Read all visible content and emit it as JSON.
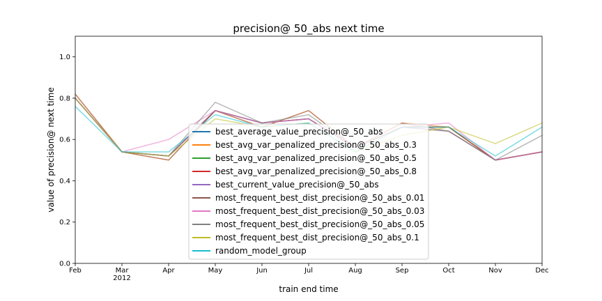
{
  "chart_data": {
    "type": "line",
    "title": "precision@ 50_abs next time",
    "xlabel": "train end time",
    "ylabel": "value of precision@ next time",
    "categories": [
      "Feb",
      "Mar",
      "Apr",
      "May",
      "Jun",
      "Jul",
      "Aug",
      "Sep",
      "Oct",
      "Nov",
      "Dec"
    ],
    "year_label": "2012",
    "ylim": [
      0.0,
      1.1
    ],
    "yticks": [
      "0.0",
      "0.2",
      "0.4",
      "0.6",
      "0.8",
      "1.0"
    ],
    "grid": false,
    "legend_position": "center",
    "series": [
      {
        "name": "best_average_value_precision@_50_abs",
        "color": "#1f77b4",
        "values": [
          0.8,
          0.54,
          0.52,
          0.74,
          0.68,
          0.7,
          0.56,
          0.66,
          0.66,
          0.5,
          0.54
        ]
      },
      {
        "name": "best_avg_var_penalized_precision@_50_abs_0.3",
        "color": "#ff7f0e",
        "values": [
          0.82,
          0.54,
          0.5,
          0.74,
          0.66,
          0.74,
          0.56,
          0.68,
          0.66,
          0.5,
          0.54
        ]
      },
      {
        "name": "best_avg_var_penalized_precision@_50_abs_0.5",
        "color": "#2ca02c",
        "values": [
          0.8,
          0.54,
          0.52,
          0.74,
          0.68,
          0.7,
          0.56,
          0.66,
          0.66,
          0.5,
          0.54
        ]
      },
      {
        "name": "best_avg_var_penalized_precision@_50_abs_0.8",
        "color": "#d62728",
        "values": [
          0.8,
          0.54,
          0.52,
          0.74,
          0.68,
          0.7,
          0.56,
          0.66,
          0.66,
          0.5,
          0.54
        ]
      },
      {
        "name": "best_current_value_precision@_50_abs",
        "color": "#9467bd",
        "values": [
          0.8,
          0.54,
          0.52,
          0.74,
          0.68,
          0.7,
          0.56,
          0.66,
          0.64,
          0.5,
          0.54
        ]
      },
      {
        "name": "most_frequent_best_dist_precision@_50_abs_0.01",
        "color": "#8c564b",
        "values": [
          0.82,
          0.54,
          0.5,
          0.74,
          0.66,
          0.74,
          0.56,
          0.68,
          0.64,
          0.5,
          0.54
        ]
      },
      {
        "name": "most_frequent_best_dist_precision@_50_abs_0.03",
        "color": "#e377c2",
        "values": [
          0.8,
          0.54,
          0.6,
          0.74,
          0.68,
          0.7,
          0.56,
          0.66,
          0.68,
          0.5,
          0.54
        ]
      },
      {
        "name": "most_frequent_best_dist_precision@_50_abs_0.05",
        "color": "#7f7f7f",
        "values": [
          0.8,
          0.54,
          0.52,
          0.78,
          0.68,
          0.72,
          0.56,
          0.66,
          0.64,
          0.5,
          0.62
        ]
      },
      {
        "name": "most_frequent_best_dist_precision@_50_abs_0.1",
        "color": "#bcbd22",
        "values": [
          0.8,
          0.54,
          0.52,
          0.7,
          0.66,
          0.68,
          0.54,
          0.62,
          0.66,
          0.58,
          0.68
        ]
      },
      {
        "name": "random_model_group",
        "color": "#17becf",
        "values": [
          0.76,
          0.54,
          0.54,
          0.72,
          0.66,
          0.68,
          0.54,
          0.66,
          0.66,
          0.52,
          0.66
        ]
      }
    ]
  }
}
